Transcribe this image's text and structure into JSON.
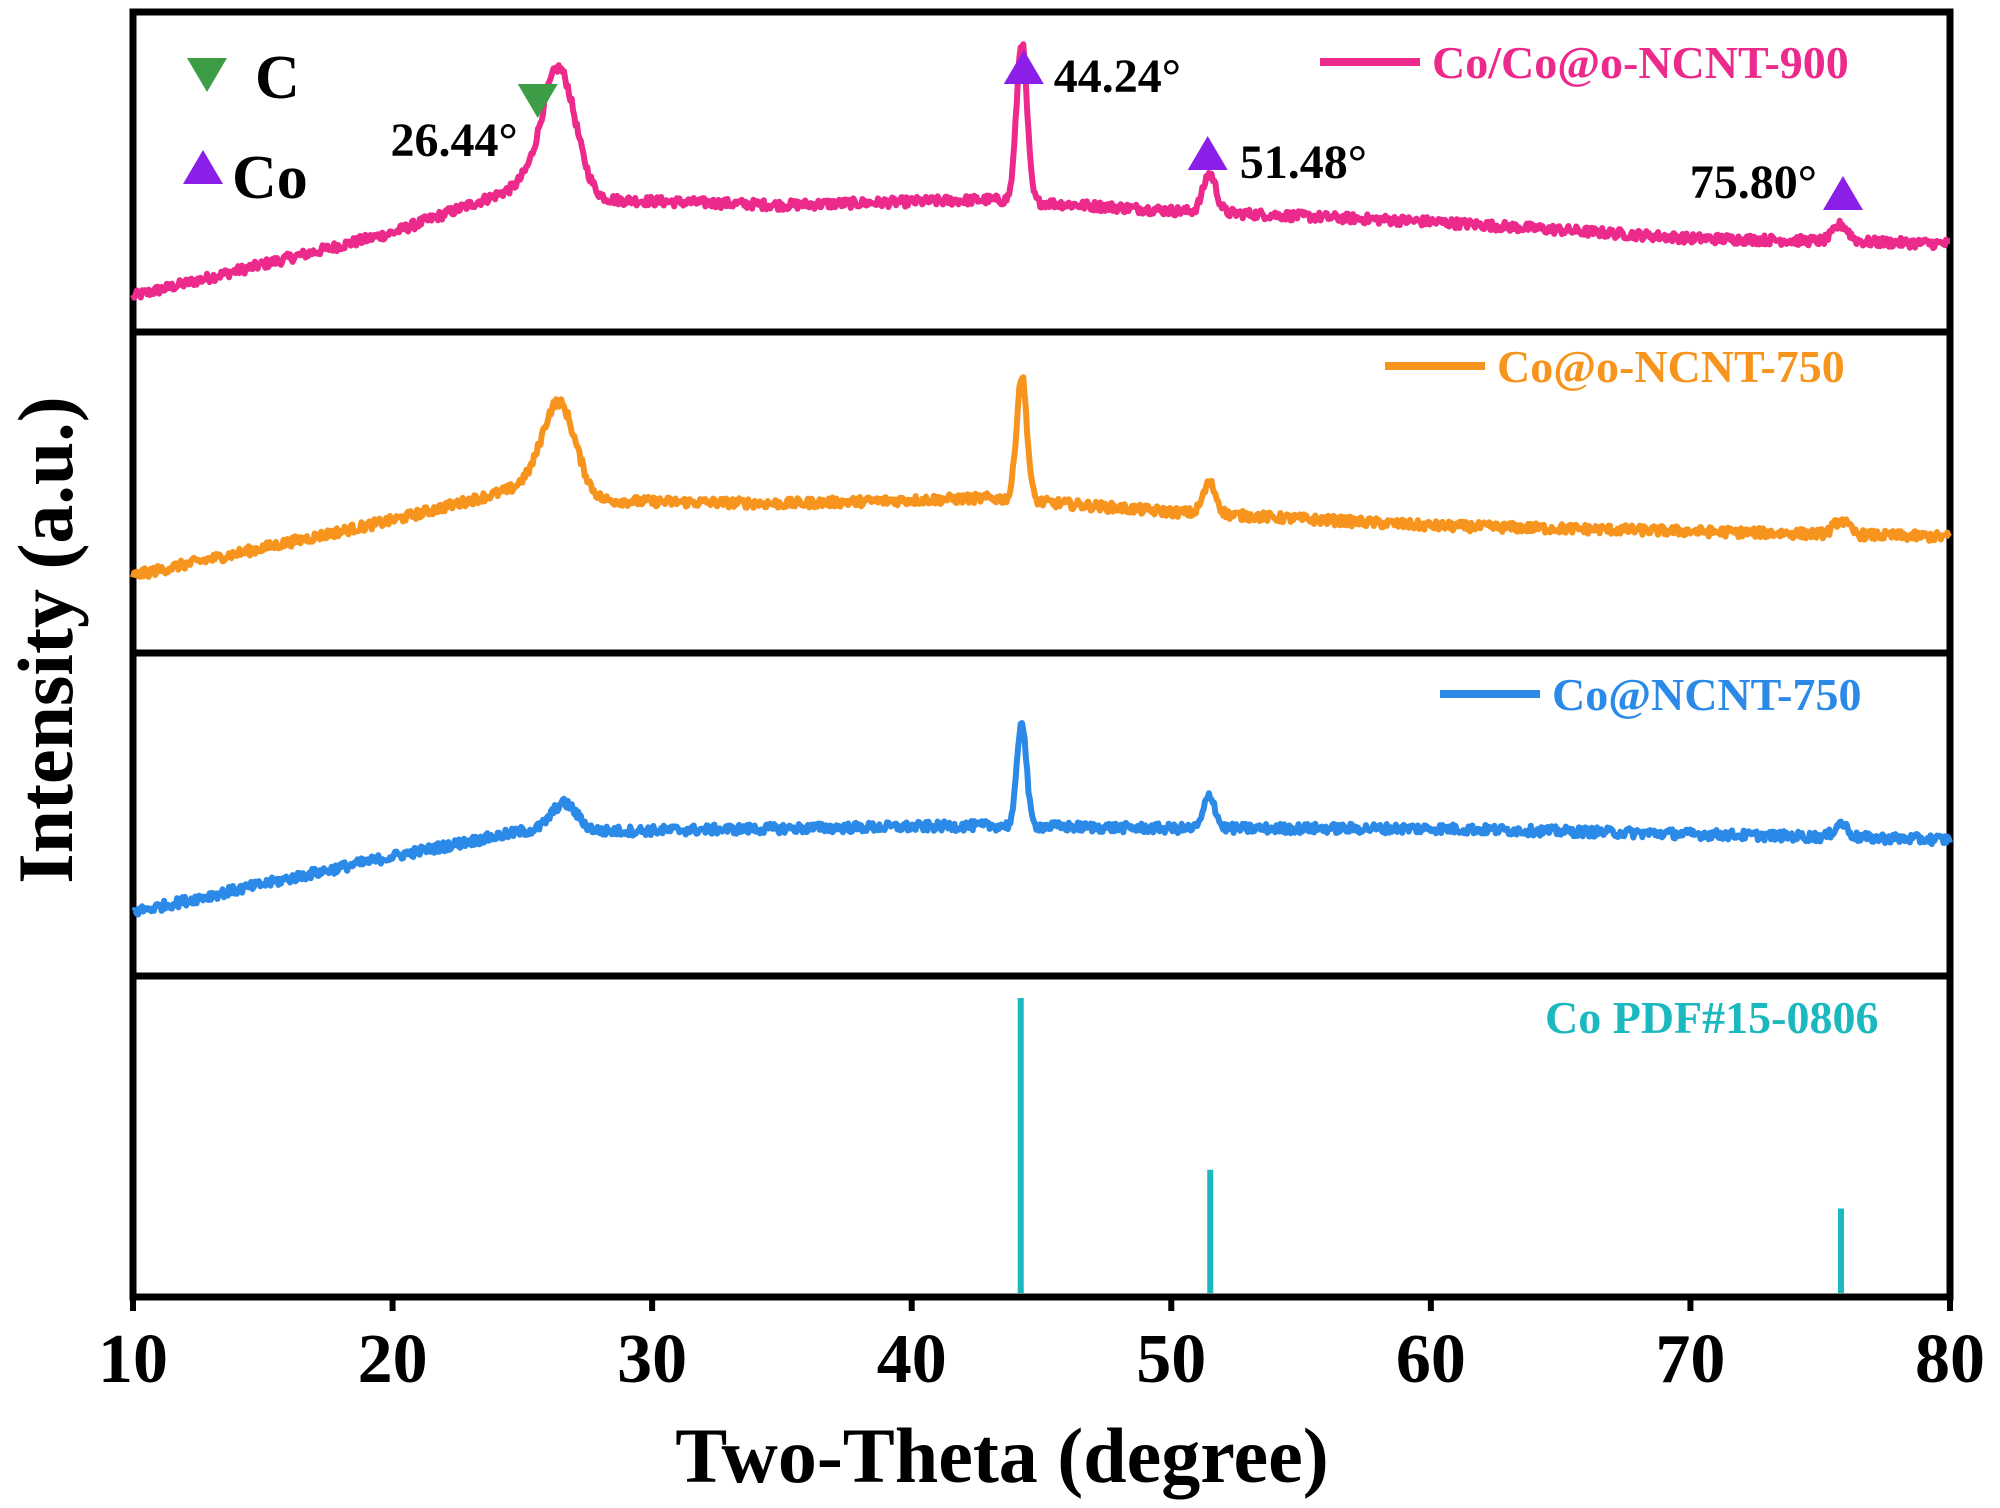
{
  "chart_data": {
    "type": "line",
    "xlabel": "Two-Theta (degree)",
    "ylabel": "Intensity (a.u.)",
    "xlim": [
      10,
      80
    ],
    "xticks": [
      10,
      20,
      30,
      40,
      50,
      60,
      70,
      80
    ],
    "tick_labels": [
      "10",
      "20",
      "30",
      "40",
      "50",
      "60",
      "70",
      "80"
    ],
    "series": [
      {
        "name": "Co/Co@o-NCNT-900",
        "color": "#ec2a8c",
        "panel": 1,
        "ylim": [
          0,
          1
        ],
        "baseline": {
          "x": [
            10,
            20,
            25,
            28,
            35,
            43,
            50,
            60,
            70,
            80
          ],
          "y": [
            0.05,
            0.28,
            0.45,
            0.4,
            0.38,
            0.4,
            0.36,
            0.32,
            0.26,
            0.24
          ]
        },
        "peaks": [
          {
            "center": 26.4,
            "height": 0.45,
            "width": 0.9
          },
          {
            "center": 44.24,
            "height": 0.58,
            "width": 0.28
          },
          {
            "center": 51.48,
            "height": 0.14,
            "width": 0.35
          },
          {
            "center": 75.8,
            "height": 0.06,
            "width": 0.4
          }
        ]
      },
      {
        "name": "Co@o-NCNT-750",
        "color": "#f7941d",
        "panel": 2,
        "ylim": [
          0,
          1
        ],
        "baseline": {
          "x": [
            10,
            20,
            25,
            28,
            35,
            43,
            50,
            60,
            70,
            80
          ],
          "y": [
            0.2,
            0.4,
            0.52,
            0.47,
            0.46,
            0.48,
            0.43,
            0.38,
            0.36,
            0.34
          ]
        },
        "peaks": [
          {
            "center": 26.4,
            "height": 0.33,
            "width": 0.9
          },
          {
            "center": 44.24,
            "height": 0.45,
            "width": 0.28
          },
          {
            "center": 51.48,
            "height": 0.11,
            "width": 0.35
          },
          {
            "center": 75.8,
            "height": 0.05,
            "width": 0.4
          }
        ]
      },
      {
        "name": "Co@NCNT-750",
        "color": "#2b8ae8",
        "panel": 3,
        "ylim": [
          0,
          1
        ],
        "baseline": {
          "x": [
            10,
            20,
            25,
            28,
            35,
            43,
            50,
            60,
            70,
            80
          ],
          "y": [
            0.15,
            0.35,
            0.44,
            0.44,
            0.45,
            0.46,
            0.45,
            0.45,
            0.43,
            0.41
          ]
        },
        "peaks": [
          {
            "center": 26.6,
            "height": 0.1,
            "width": 0.7
          },
          {
            "center": 44.24,
            "height": 0.38,
            "width": 0.25
          },
          {
            "center": 51.48,
            "height": 0.12,
            "width": 0.3
          },
          {
            "center": 75.8,
            "height": 0.05,
            "width": 0.35
          }
        ]
      }
    ],
    "reference": {
      "name": "Co PDF#15-0806",
      "color": "#1cb8c0",
      "panel": 4,
      "ylim": [
        0,
        100
      ],
      "lines": [
        {
          "x": 44.2,
          "intensity": 100
        },
        {
          "x": 51.5,
          "intensity": 38
        },
        {
          "x": 75.8,
          "intensity": 24
        }
      ]
    },
    "annotations": {
      "peak_labels": [
        {
          "text": "26.44°",
          "x": 26.44,
          "marker": "C"
        },
        {
          "text": "44.24°",
          "x": 44.24,
          "marker": "Co"
        },
        {
          "text": "51.48°",
          "x": 51.48,
          "marker": "Co"
        },
        {
          "text": "75.80°",
          "x": 75.8,
          "marker": "Co"
        }
      ],
      "phase_legend": [
        {
          "symbol": "▼",
          "label": "C",
          "color": "#3c9d46"
        },
        {
          "symbol": "▲",
          "label": "Co",
          "color": "#8b1fe8"
        }
      ]
    }
  }
}
